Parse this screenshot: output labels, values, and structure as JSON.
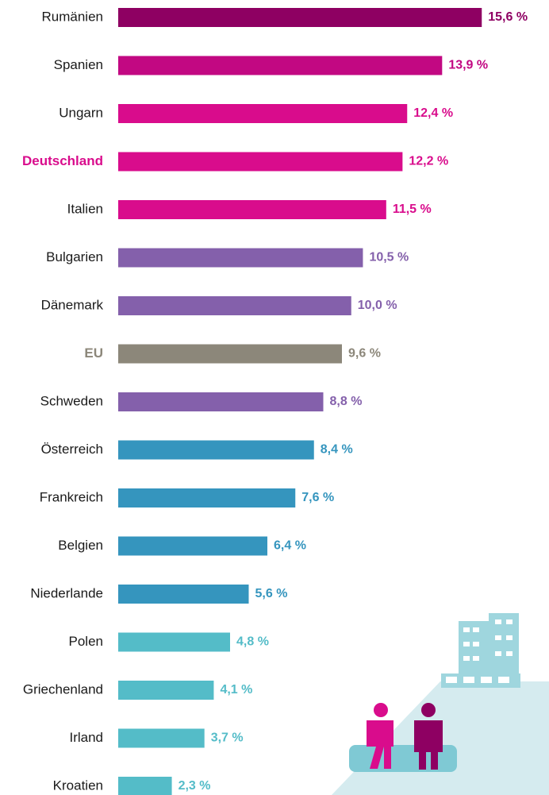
{
  "chart_data": {
    "type": "bar",
    "orientation": "horizontal",
    "categories": [
      "Rumänien",
      "Spanien",
      "Ungarn",
      "Deutschland",
      "Italien",
      "Bulgarien",
      "Dänemark",
      "EU",
      "Schweden",
      "Österreich",
      "Frankreich",
      "Belgien",
      "Niederlande",
      "Polen",
      "Griechenland",
      "Irland",
      "Kroatien"
    ],
    "values": [
      15.6,
      13.9,
      12.4,
      12.2,
      11.5,
      10.5,
      10.0,
      9.6,
      8.8,
      8.4,
      7.6,
      6.4,
      5.6,
      4.8,
      4.1,
      3.7,
      2.3
    ],
    "value_labels": [
      "15,6 %",
      "13,9 %",
      "12,4 %",
      "12,2 %",
      "11,5 %",
      "10,5 %",
      "10,0 %",
      "9,6 %",
      "8,8 %",
      "8,4 %",
      "7,6 %",
      "6,4 %",
      "5,6 %",
      "4,8 %",
      "4,1 %",
      "3,7 %",
      "2,3 %"
    ],
    "colors": [
      "#8e0062",
      "#c20882",
      "#d90c8c",
      "#d90c8c",
      "#d90c8c",
      "#8460ab",
      "#8460ab",
      "#8c877a",
      "#8460ab",
      "#3595be",
      "#3595be",
      "#3595be",
      "#3595be",
      "#54bcc8",
      "#54bcc8",
      "#54bcc8",
      "#54bcc8"
    ],
    "label_colors": [
      "#1a1a1a",
      "#1a1a1a",
      "#1a1a1a",
      "#d90c8c",
      "#1a1a1a",
      "#1a1a1a",
      "#1a1a1a",
      "#8c877a",
      "#1a1a1a",
      "#1a1a1a",
      "#1a1a1a",
      "#1a1a1a",
      "#1a1a1a",
      "#1a1a1a",
      "#1a1a1a",
      "#1a1a1a",
      "#1a1a1a"
    ],
    "xlim": [
      0,
      16
    ]
  }
}
